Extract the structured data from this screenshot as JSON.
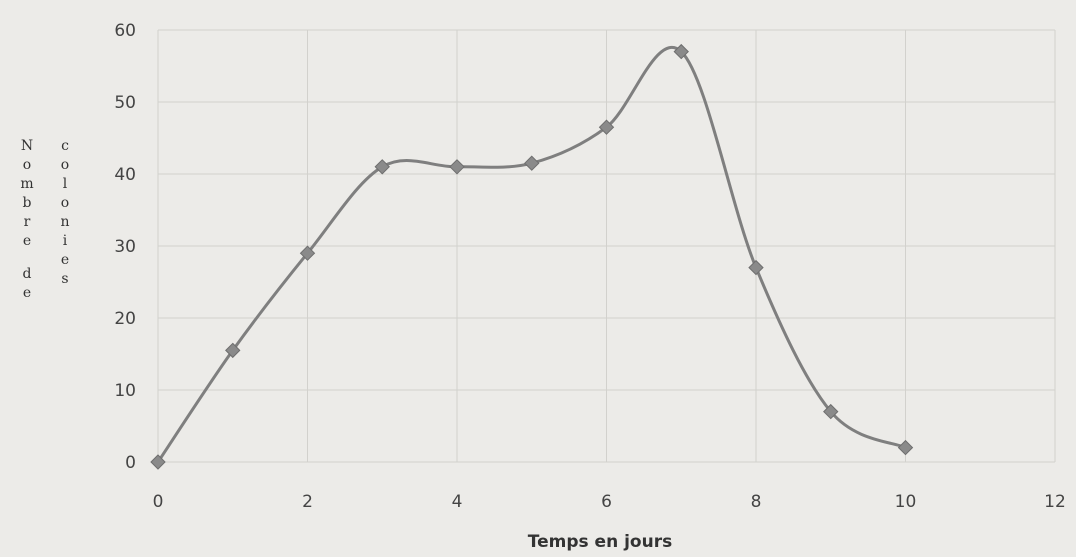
{
  "chart_data": {
    "type": "line",
    "title": "",
    "xlabel": "Temps en jours",
    "ylabel_columns": [
      "Nombre de",
      "colonies"
    ],
    "xlim": [
      0,
      12
    ],
    "ylim": [
      0,
      60
    ],
    "x_ticks": [
      0,
      2,
      4,
      6,
      8,
      10,
      12
    ],
    "y_ticks": [
      0,
      10,
      20,
      30,
      40,
      50,
      60
    ],
    "grid": true,
    "smooth": true,
    "series": [
      {
        "x": [
          0,
          1,
          2,
          3,
          4,
          5,
          6,
          7,
          8,
          9,
          10
        ],
        "y": [
          0,
          15.5,
          29,
          41,
          41,
          41.5,
          46.5,
          57,
          27,
          7,
          2
        ]
      }
    ],
    "colors": {
      "line": "#7f7f7f",
      "marker": "#8a8a8a",
      "grid": "#d2d1cd",
      "background": "#ecebe8"
    }
  }
}
